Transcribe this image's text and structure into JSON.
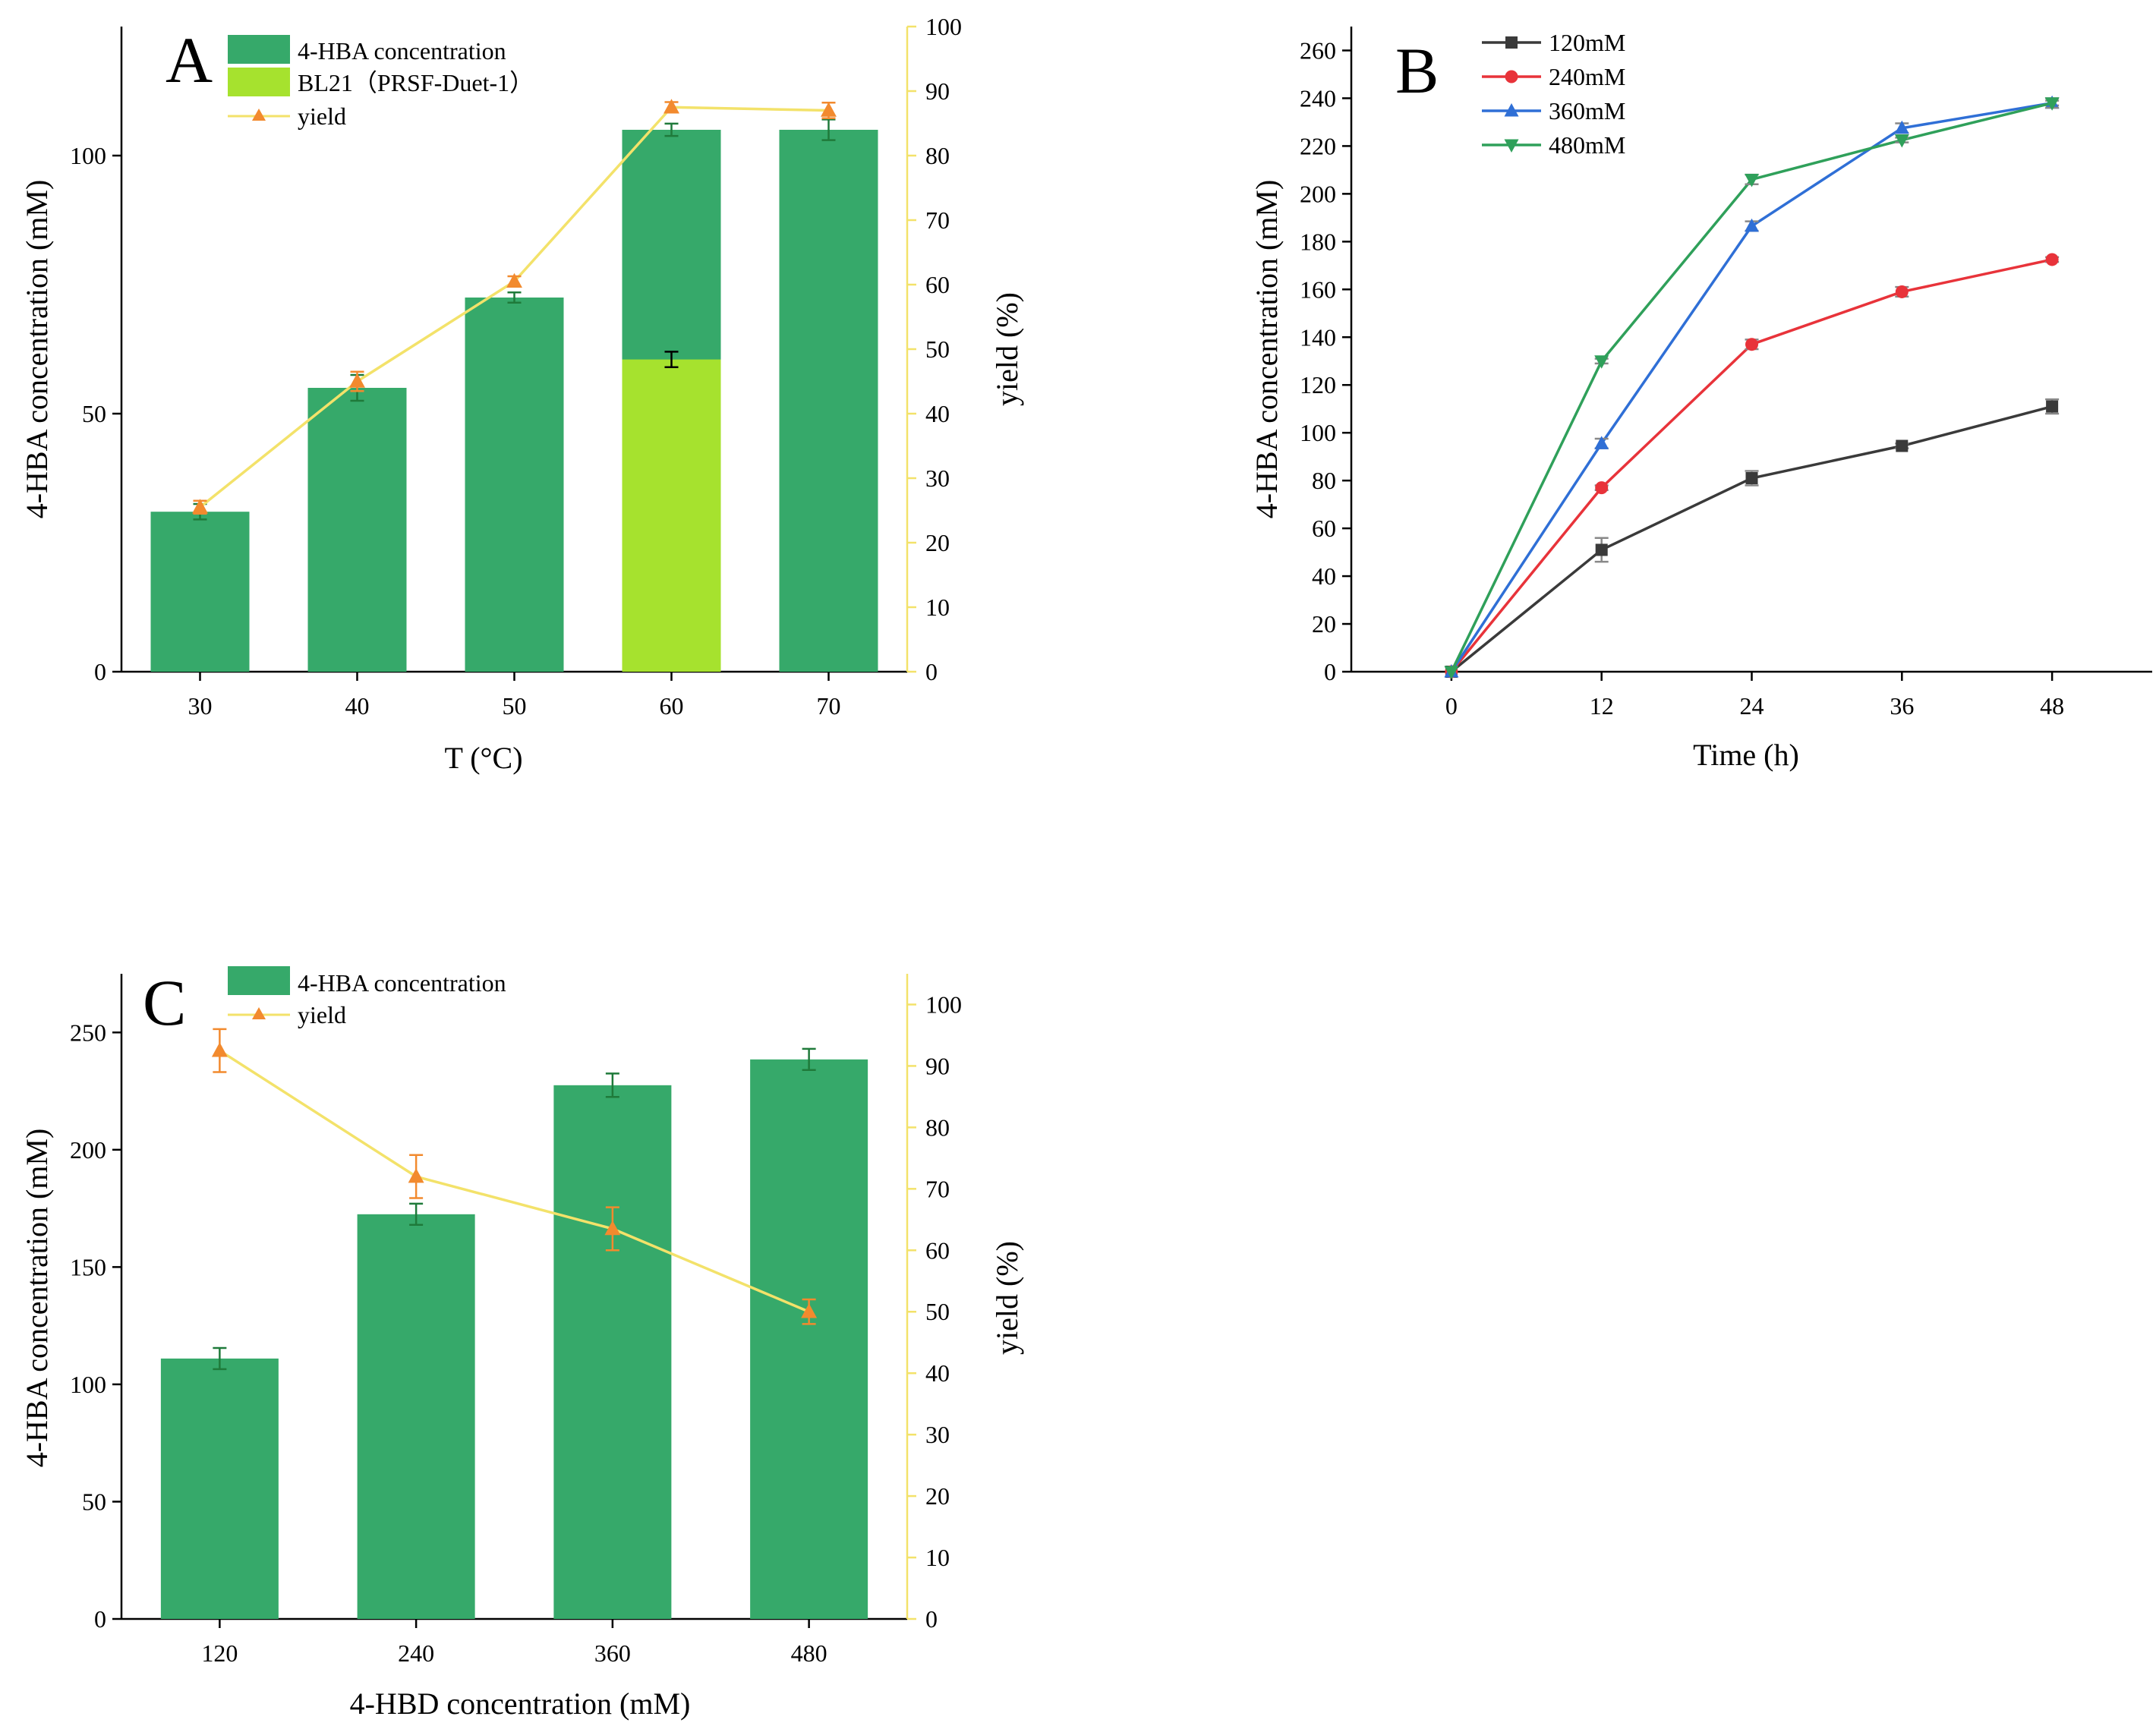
{
  "chart_data": [
    {
      "panel": "A",
      "type": "bar",
      "xlabel": "T (°C)",
      "ylabel": "4-HBA concentration (mM)",
      "y2label": "yield (%)",
      "categories": [
        "30",
        "40",
        "50",
        "60",
        "70"
      ],
      "ylim": [
        0,
        125
      ],
      "yticks": [
        0,
        50,
        100
      ],
      "y2lim": [
        0,
        100
      ],
      "y2ticks": [
        0,
        10,
        20,
        30,
        40,
        50,
        60,
        70,
        80,
        90,
        100
      ],
      "legend": [
        "4-HBA concentration",
        "BL21（PRSF-Duet-1）",
        "yield"
      ],
      "series": [
        {
          "name": "4-HBA concentration",
          "kind": "bar",
          "color": "#36a96a",
          "values": [
            31,
            55,
            72.5,
            105,
            105
          ],
          "errors": [
            1.5,
            2.5,
            1,
            1.2,
            2
          ]
        },
        {
          "name": "BL21（PRSF-Duet-1）",
          "kind": "bar",
          "color": "#a6e22e",
          "values": [
            null,
            null,
            null,
            60.5,
            null
          ],
          "errors": [
            null,
            null,
            null,
            1.5,
            null
          ]
        },
        {
          "name": "yield",
          "kind": "line",
          "axis": "y2",
          "color": "#f3e26a",
          "marker_color": "#f28a2e",
          "values": [
            25.5,
            45,
            60.5,
            87.5,
            87
          ],
          "errors": [
            1,
            1.5,
            0.8,
            0.8,
            1.2
          ]
        }
      ]
    },
    {
      "panel": "B",
      "type": "line",
      "xlabel": "Time (h)",
      "ylabel": "4-HBA concentration (mM)",
      "x": [
        0,
        12,
        24,
        36,
        48
      ],
      "xlim": [
        -8,
        56
      ],
      "ylim": [
        0,
        270
      ],
      "yticks": [
        0,
        20,
        40,
        60,
        80,
        100,
        120,
        140,
        160,
        180,
        200,
        220,
        240,
        260
      ],
      "legend": [
        "120mM",
        "240mM",
        "360mM",
        "480mM"
      ],
      "series": [
        {
          "name": "120mM",
          "color": "#3a3a3a",
          "marker": "square",
          "values": [
            0,
            51,
            81,
            94.5,
            111
          ],
          "errors": [
            0,
            5,
            3,
            1,
            3
          ]
        },
        {
          "name": "240mM",
          "color": "#e8333a",
          "marker": "circle",
          "values": [
            0,
            77,
            137,
            159,
            172.5
          ],
          "errors": [
            0,
            1,
            2,
            2,
            1
          ]
        },
        {
          "name": "360mM",
          "color": "#2f6fd6",
          "marker": "triangle-up",
          "values": [
            0,
            95.5,
            186.5,
            227.5,
            238
          ],
          "errors": [
            0,
            2,
            2,
            2,
            1
          ]
        },
        {
          "name": "480mM",
          "color": "#2fa05a",
          "marker": "triangle-down",
          "values": [
            0,
            130,
            206,
            222.5,
            238
          ],
          "errors": [
            0,
            1,
            2,
            1,
            2
          ]
        }
      ]
    },
    {
      "panel": "C",
      "type": "bar",
      "xlabel": "4-HBD concentration (mM)",
      "ylabel": "4-HBA concentration (mM)",
      "y2label": "yield (%)",
      "categories": [
        "120",
        "240",
        "360",
        "480"
      ],
      "ylim": [
        0,
        275
      ],
      "yticks": [
        0,
        50,
        100,
        150,
        200,
        250
      ],
      "y2lim": [
        0,
        105
      ],
      "y2ticks": [
        0,
        10,
        20,
        30,
        40,
        50,
        60,
        70,
        80,
        90,
        100
      ],
      "legend": [
        "4-HBA concentration",
        "yield"
      ],
      "series": [
        {
          "name": "4-HBA concentration",
          "kind": "bar",
          "color": "#36a96a",
          "values": [
            111,
            172.5,
            227.5,
            238.5
          ],
          "errors": [
            4.5,
            4.5,
            5,
            4.5
          ]
        },
        {
          "name": "yield",
          "kind": "line",
          "axis": "y2",
          "color": "#f3e26a",
          "marker_color": "#f28a2e",
          "values": [
            92.5,
            72,
            63.5,
            50
          ],
          "errors": [
            3.5,
            3.5,
            3.5,
            2
          ]
        }
      ]
    }
  ],
  "labels": {
    "panelA": "A",
    "panelB": "B",
    "panelC": "C",
    "legendA1": "4-HBA concentration",
    "legendA2": "BL21（PRSF-Duet-1）",
    "legendA3": "yield",
    "legendB1": "120mM",
    "legendB2": "240mM",
    "legendB3": "360mM",
    "legendB4": "480mM",
    "legendC1": "4-HBA concentration",
    "legendC2": "yield",
    "axA_x": "T (°C)",
    "axA_y": "4-HBA concentration (mM)",
    "axA_y2": "yield (%)",
    "axB_x": "Time (h)",
    "axB_y": "4-HBA concentration (mM)",
    "axC_x": "4-HBD concentration (mM)",
    "axC_y": "4-HBA concentration (mM)",
    "axC_y2": "yield (%)"
  }
}
